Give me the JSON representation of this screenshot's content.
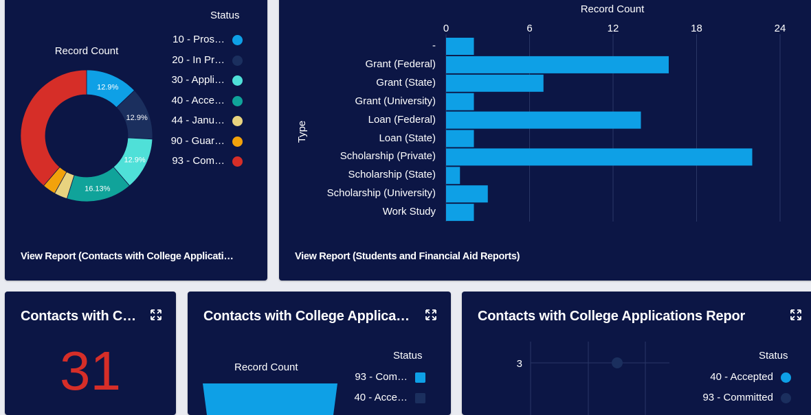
{
  "donut_card": {
    "chart_label": "Record Count",
    "legend_title": "Status",
    "legend": [
      {
        "label": "10 - Pros…",
        "color": "#0ea0e6"
      },
      {
        "label": "20 - In Pr…",
        "color": "#1b2f5e"
      },
      {
        "label": "30 - Appli…",
        "color": "#4fe0d8"
      },
      {
        "label": "40 - Acce…",
        "color": "#10a39a"
      },
      {
        "label": "44 - Janu…",
        "color": "#e8d37f"
      },
      {
        "label": "90 - Guar…",
        "color": "#f2a20b"
      },
      {
        "label": "93 - Com…",
        "color": "#d62e28"
      }
    ],
    "view_report": "View Report (Contacts with College Applicati…"
  },
  "bar_card": {
    "view_report": "View Report (Students and Financial Aid Reports)"
  },
  "metric_card": {
    "title": "Contacts with C…",
    "value": "31"
  },
  "funnel_card": {
    "title": "Contacts with College Applica…",
    "chart_label": "Record Count",
    "legend_title": "Status",
    "legend": [
      {
        "label": "93 - Com…",
        "color": "#0ea0e6"
      },
      {
        "label": "40 - Acce…",
        "color": "#1b2f5e"
      }
    ]
  },
  "scatter_card": {
    "title": "Contacts with College Applications Repor",
    "legend_title": "Status",
    "legend": [
      {
        "label": "40 - Accepted",
        "color": "#0ea0e6"
      },
      {
        "label": "93 - Committed",
        "color": "#1b2f5e"
      }
    ],
    "y_tick": "3"
  },
  "chart_data": [
    {
      "type": "pie",
      "title": "Record Count",
      "legend_title": "Status",
      "categories": [
        "10 - Pros…",
        "20 - In Pr…",
        "30 - Appli…",
        "40 - Acce…",
        "44 - Janu…",
        "90 - Guar…",
        "93 - Com…"
      ],
      "values": [
        12.9,
        12.9,
        12.9,
        16.13,
        3.23,
        3.23,
        38.71
      ],
      "value_labels": [
        "12.9%",
        "12.9%",
        "12.9%",
        "16.13%",
        "",
        "",
        ""
      ],
      "colors": [
        "#0ea0e6",
        "#1b2f5e",
        "#4fe0d8",
        "#10a39a",
        "#e8d37f",
        "#f2a20b",
        "#d62e28"
      ]
    },
    {
      "type": "bar",
      "orientation": "horizontal",
      "title": "Record Count",
      "xlabel": "Record Count",
      "ylabel": "Type",
      "xlim": [
        0,
        24
      ],
      "xticks": [
        0,
        6,
        12,
        18,
        24
      ],
      "categories": [
        "-",
        "Grant (Federal)",
        "Grant (State)",
        "Grant (University)",
        "Loan (Federal)",
        "Loan (State)",
        "Scholarship (Private)",
        "Scholarship (State)",
        "Scholarship (University)",
        "Work Study"
      ],
      "values": [
        2,
        16,
        7,
        2,
        14,
        2,
        22,
        1,
        3,
        2
      ],
      "color": "#0ea0e6"
    }
  ]
}
